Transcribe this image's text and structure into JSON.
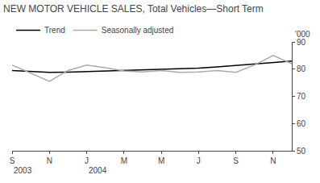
{
  "chart_data": {
    "type": "line",
    "title": "NEW MOTOR VEHICLE SALES, Total Vehicles—Short Term",
    "ylabel": "'000",
    "categories": [
      "S",
      null,
      "N",
      null,
      "J",
      null,
      "M",
      null,
      "M",
      null,
      "J",
      null,
      "S",
      null,
      "N",
      null
    ],
    "series": [
      {
        "name": "Trend",
        "color": "#000000",
        "values": [
          79.5,
          79.2,
          78.8,
          78.9,
          79.1,
          79.3,
          79.5,
          79.7,
          79.9,
          80.1,
          80.4,
          80.8,
          81.3,
          81.9,
          82.5,
          83.0
        ]
      },
      {
        "name": "Seasonally adjusted",
        "color": "#aaaaaa",
        "values": [
          81.5,
          78.5,
          75.5,
          79.5,
          81.5,
          80.5,
          79.3,
          79.0,
          79.5,
          78.8,
          79.0,
          79.5,
          78.8,
          81.5,
          85.0,
          82.0
        ]
      }
    ],
    "annotations": [
      {
        "text": "2003",
        "x": 0
      },
      {
        "text": "2004",
        "x": 4
      }
    ],
    "ylim": [
      50,
      90
    ],
    "yticks": [
      50,
      60,
      70,
      80,
      90
    ],
    "grid": false,
    "legend": "upper left"
  }
}
